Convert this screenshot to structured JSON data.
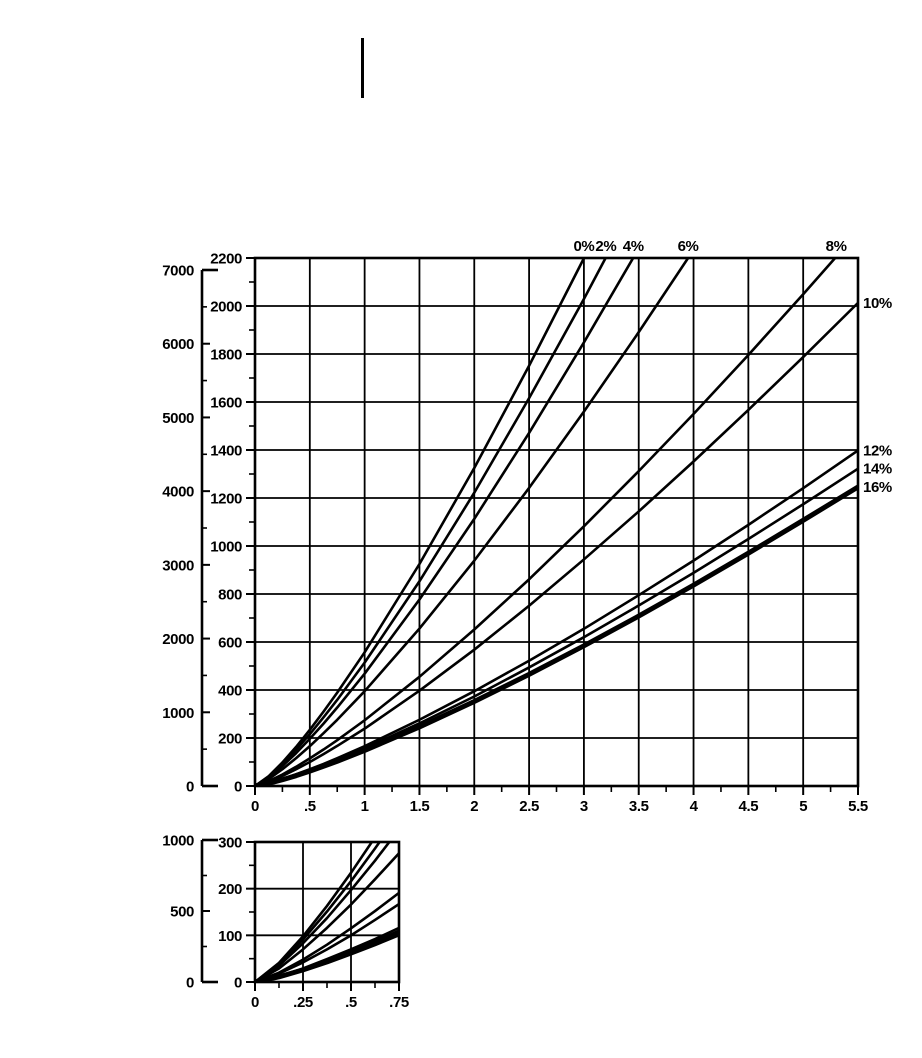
{
  "page": {
    "background": "#ffffff",
    "ink_color": "#000000"
  },
  "chart_data": [
    {
      "id": "main",
      "type": "line",
      "title": "",
      "x_axis": {
        "min": 0,
        "max": 5.5,
        "major_step": 0.5,
        "minor_step": 0.25,
        "tick_labels": [
          "0",
          ".5",
          "1",
          "1.5",
          "2",
          "2.5",
          "3",
          "3.5",
          "4",
          "4.5",
          "5",
          "5.5"
        ]
      },
      "y_axis_inner": {
        "min": 0,
        "max": 2200,
        "major_step": 200,
        "minor_step": 100,
        "tick_labels": [
          "0",
          "200",
          "400",
          "600",
          "800",
          "1000",
          "1200",
          "1400",
          "1600",
          "1800",
          "2000",
          "2200"
        ]
      },
      "y_axis_outer": {
        "min": 0,
        "max": 7000,
        "major_step": 1000,
        "minor_step": 500,
        "tick_labels": [
          "0",
          "1000",
          "2000",
          "3000",
          "4000",
          "5000",
          "6000",
          "7000"
        ]
      },
      "grid": true,
      "series_labels_enabled": true,
      "x_samples": [
        0,
        0.125,
        0.25,
        0.375,
        0.5,
        0.625,
        0.75,
        1,
        1.5,
        2,
        2.5,
        3,
        3.5,
        4,
        4.5,
        5,
        5.5
      ],
      "series": [
        {
          "name": "0%",
          "label_side": "top",
          "label_x": 3.0,
          "thick": false,
          "values": [
            0,
            41,
            98,
            163,
            234,
            310,
            389,
            557,
            925,
            1325,
            1751,
            2199,
            2666,
            3151,
            3651,
            4165,
            4691
          ]
        },
        {
          "name": "2%",
          "label_side": "top",
          "label_x": 3.2,
          "thick": false,
          "values": [
            0,
            38,
            91,
            151,
            216,
            286,
            359,
            514,
            853,
            1222,
            1616,
            2029,
            2461,
            2908,
            3369,
            3843,
            4329
          ]
        },
        {
          "name": "4%",
          "label_side": "top",
          "label_x": 3.45,
          "thick": false,
          "values": [
            0,
            35,
            83,
            137,
            197,
            260,
            327,
            468,
            777,
            1113,
            1471,
            1848,
            2240,
            2647,
            3068,
            3499,
            3942
          ]
        },
        {
          "name": "6%",
          "label_side": "top",
          "label_x": 3.95,
          "thick": false,
          "values": [
            0,
            29,
            70,
            116,
            166,
            220,
            276,
            395,
            656,
            939,
            1242,
            1560,
            1891,
            2234,
            2589,
            2953,
            3327
          ]
        },
        {
          "name": "8%",
          "label_side": "top",
          "label_x": 5.3,
          "thick": false,
          "values": [
            0,
            20,
            48,
            80,
            115,
            152,
            191,
            274,
            455,
            652,
            861,
            1082,
            1312,
            1550,
            1796,
            2049,
            2308
          ]
        },
        {
          "name": "10%",
          "label_side": "right",
          "thick": false,
          "values": [
            0,
            18,
            42,
            70,
            100,
            133,
            167,
            239,
            397,
            568,
            751,
            944,
            1144,
            1352,
            1567,
            1787,
            2013
          ]
        },
        {
          "name": "12%",
          "label_side": "right",
          "thick": false,
          "values": [
            0,
            12,
            29,
            49,
            70,
            92,
            116,
            166,
            276,
            395,
            522,
            655,
            795,
            939,
            1088,
            1241,
            1398
          ]
        },
        {
          "name": "14%",
          "label_side": "right",
          "thick": false,
          "values": [
            0,
            12,
            28,
            46,
            66,
            87,
            110,
            157,
            261,
            373,
            494,
            620,
            752,
            888,
            1029,
            1174,
            1322
          ]
        },
        {
          "name": "16%",
          "label_side": "right",
          "thick": true,
          "values": [
            0,
            11,
            26,
            43,
            62,
            82,
            103,
            148,
            246,
            352,
            465,
            584,
            708,
            837,
            970,
            1107,
            1246
          ]
        }
      ]
    },
    {
      "id": "inset",
      "type": "line",
      "title": "",
      "x_axis": {
        "min": 0,
        "max": 0.75,
        "major_step": 0.25,
        "minor_step": 0.125,
        "tick_labels": [
          "0",
          ".25",
          ".5",
          ".75"
        ]
      },
      "y_axis_inner": {
        "min": 0,
        "max": 300,
        "major_step": 100,
        "minor_step": 50,
        "tick_labels": [
          "0",
          "100",
          "200",
          "300"
        ]
      },
      "y_axis_outer": {
        "min": 0,
        "max": 1000,
        "major_step": 500,
        "minor_step": 250,
        "tick_labels": [
          "0",
          "500",
          "1000"
        ]
      },
      "grid": true,
      "series_labels_enabled": false,
      "x_samples": [
        0,
        0.125,
        0.25,
        0.375,
        0.5,
        0.625,
        0.75
      ],
      "series": [
        {
          "name": "0%",
          "thick": false,
          "values": [
            0,
            41,
            98,
            163,
            234,
            310,
            389
          ]
        },
        {
          "name": "2%",
          "thick": false,
          "values": [
            0,
            38,
            91,
            151,
            216,
            286,
            359
          ]
        },
        {
          "name": "4%",
          "thick": false,
          "values": [
            0,
            35,
            83,
            137,
            197,
            260,
            327
          ]
        },
        {
          "name": "6%",
          "thick": false,
          "values": [
            0,
            29,
            70,
            116,
            166,
            220,
            276
          ]
        },
        {
          "name": "8%",
          "thick": false,
          "values": [
            0,
            20,
            48,
            80,
            115,
            152,
            191
          ]
        },
        {
          "name": "10%",
          "thick": false,
          "values": [
            0,
            18,
            42,
            70,
            100,
            133,
            167
          ]
        },
        {
          "name": "12%",
          "thick": false,
          "values": [
            0,
            12,
            29,
            49,
            70,
            92,
            116
          ]
        },
        {
          "name": "14%",
          "thick": false,
          "values": [
            0,
            12,
            28,
            46,
            66,
            87,
            110
          ]
        },
        {
          "name": "16%",
          "thick": true,
          "values": [
            0,
            11,
            26,
            43,
            62,
            82,
            103
          ]
        }
      ]
    }
  ]
}
